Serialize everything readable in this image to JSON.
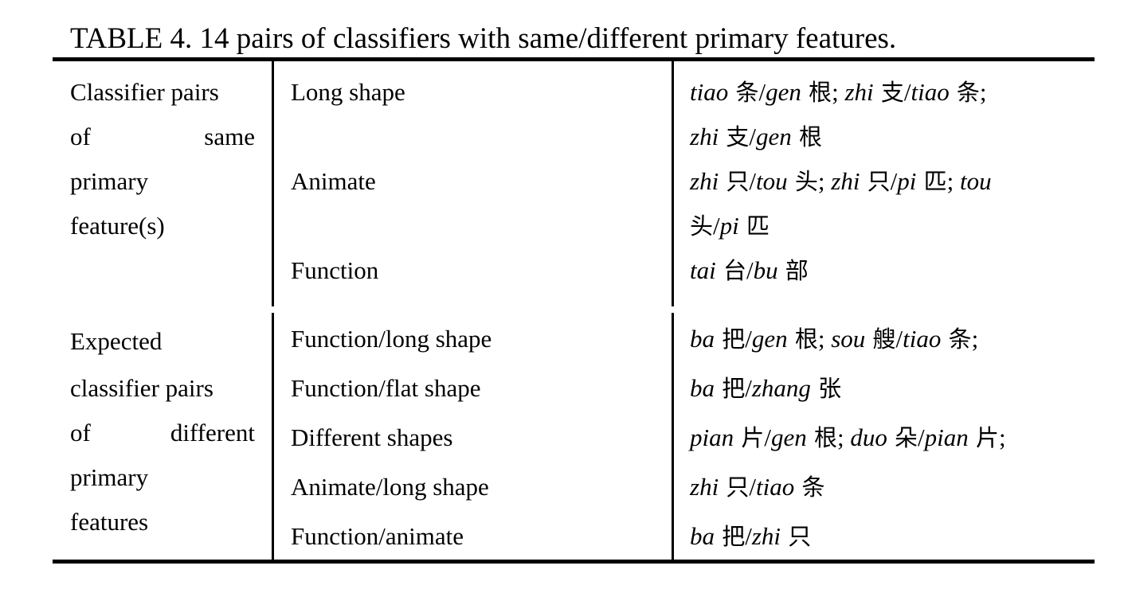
{
  "caption": "TABLE 4. 14 pairs of classifiers with same/different primary features.",
  "groups": [
    {
      "label_lines": [
        "Classifier pairs",
        "of same",
        "primary",
        "feature(s)"
      ],
      "rows": [
        {
          "feature": "Long shape",
          "pairs_lines": [
            [
              {
                "py": "tiao",
                "hz": "条"
              },
              {
                "sep": "/"
              },
              {
                "py": "gen",
                "hz": "根"
              },
              {
                "sep": "; "
              },
              {
                "py": "zhi",
                "hz": "支"
              },
              {
                "sep": "/"
              },
              {
                "py": "tiao",
                "hz": "条"
              },
              {
                "sep": ";"
              }
            ],
            [
              {
                "py": "zhi",
                "hz": "支"
              },
              {
                "sep": "/"
              },
              {
                "py": "gen",
                "hz": "根"
              }
            ]
          ]
        },
        {
          "feature": "Animate",
          "pairs_lines": [
            [
              {
                "py": "zhi",
                "hz": "只"
              },
              {
                "sep": "/"
              },
              {
                "py": "tou",
                "hz": "头"
              },
              {
                "sep": "; "
              },
              {
                "py": "zhi",
                "hz": "只"
              },
              {
                "sep": "/"
              },
              {
                "py": "pi",
                "hz": "匹"
              },
              {
                "sep": "; "
              },
              {
                "py": "tou",
                "hz": ""
              }
            ],
            [
              {
                "py": "",
                "hz": "头"
              },
              {
                "sep": "/"
              },
              {
                "py": "pi",
                "hz": "匹"
              }
            ]
          ]
        },
        {
          "feature": "Function",
          "pairs_lines": [
            [
              {
                "py": "tai",
                "hz": "台"
              },
              {
                "sep": "/"
              },
              {
                "py": "bu",
                "hz": "部"
              }
            ]
          ]
        }
      ]
    },
    {
      "label_lines": [
        "Expected",
        "classifier pairs",
        "of different",
        "primary",
        "features"
      ],
      "rows": [
        {
          "feature": "Function/long shape",
          "pairs_lines": [
            [
              {
                "py": "ba",
                "hz": "把"
              },
              {
                "sep": "/"
              },
              {
                "py": "gen",
                "hz": "根"
              },
              {
                "sep": "; "
              },
              {
                "py": "sou",
                "hz": "艘"
              },
              {
                "sep": "/"
              },
              {
                "py": "tiao",
                "hz": "条"
              },
              {
                "sep": ";"
              }
            ]
          ]
        },
        {
          "feature": "Function/flat shape",
          "pairs_lines": [
            [
              {
                "py": "ba",
                "hz": "把"
              },
              {
                "sep": "/"
              },
              {
                "py": "zhang",
                "hz": "张"
              }
            ]
          ]
        },
        {
          "feature": "Different shapes",
          "pairs_lines": [
            [
              {
                "py": "pian",
                "hz": "片"
              },
              {
                "sep": "/"
              },
              {
                "py": "gen",
                "hz": "根"
              },
              {
                "sep": "; "
              },
              {
                "py": "duo",
                "hz": "朵"
              },
              {
                "sep": "/"
              },
              {
                "py": "pian",
                "hz": "片"
              },
              {
                "sep": ";"
              }
            ]
          ]
        },
        {
          "feature": "Animate/long shape",
          "pairs_lines": [
            [
              {
                "py": "zhi",
                "hz": "只"
              },
              {
                "sep": "/"
              },
              {
                "py": "tiao",
                "hz": "条"
              }
            ]
          ]
        },
        {
          "feature": "Function/animate",
          "pairs_lines": [
            [
              {
                "py": "ba",
                "hz": "把"
              },
              {
                "sep": "/"
              },
              {
                "py": "zhi",
                "hz": "只"
              }
            ]
          ]
        }
      ]
    }
  ]
}
